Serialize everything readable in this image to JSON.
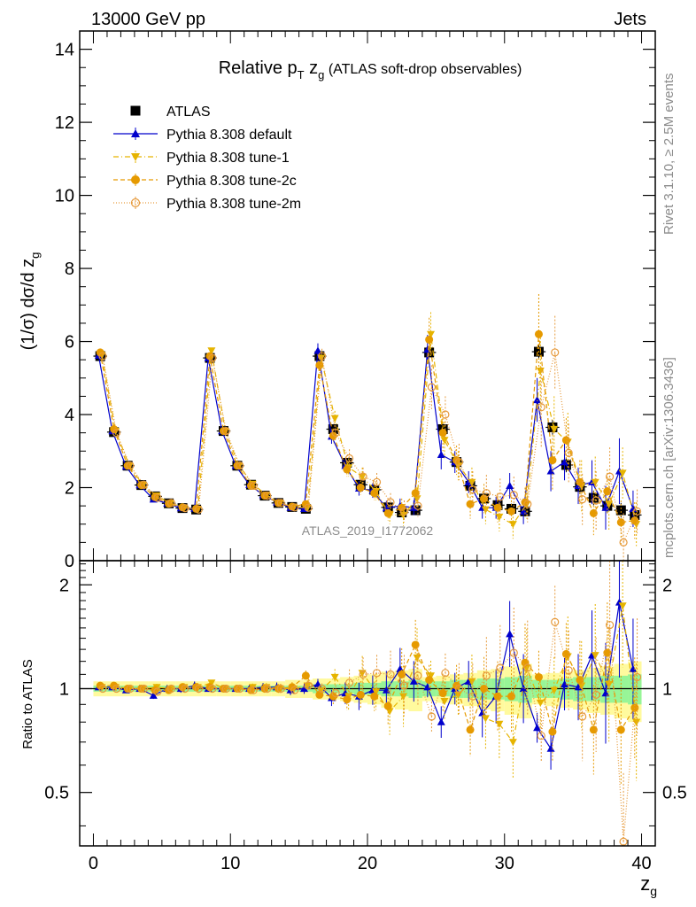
{
  "header": {
    "left_label": "13000 GeV pp",
    "right_label": "Jets"
  },
  "side_labels": {
    "rivet": "Rivet 3.1.10, ≥ 2.5M events",
    "mcplots": "mcplots.cern.ch [arXiv:1306.3436]"
  },
  "chart_data": [
    {
      "type": "scatter",
      "title_main": "Relative p",
      "title_sub1": "T",
      "title_mid": " z",
      "title_sub2": "g",
      "title_tail": " (ATLAS soft-drop observables)",
      "ylabel": "(1/σ) dσ/d z",
      "ylabel_sub": "g",
      "watermark": "ATLAS_2019_I1772062",
      "xlim": [
        -1,
        41
      ],
      "ylim": [
        0,
        14.5
      ],
      "yticks": [
        0,
        2,
        4,
        6,
        8,
        10,
        12,
        14
      ],
      "x": [
        0.5,
        1.5,
        2.5,
        3.5,
        4.5,
        5.5,
        6.5,
        7.5,
        8.5,
        9.5,
        10.5,
        11.5,
        12.5,
        13.5,
        14.5,
        15.5,
        16.5,
        17.5,
        18.5,
        19.5,
        20.5,
        21.5,
        22.5,
        23.5,
        24.5,
        25.5,
        26.5,
        27.5,
        28.5,
        29.5,
        30.5,
        31.5,
        32.5,
        33.5,
        34.5,
        35.5,
        36.5,
        37.5,
        38.5,
        39.5
      ],
      "series": [
        {
          "name": "ATLAS",
          "color": "#000000",
          "marker": "square",
          "line": "none",
          "values": [
            5.6,
            3.52,
            2.6,
            2.07,
            1.76,
            1.57,
            1.44,
            1.4,
            5.55,
            3.55,
            2.6,
            2.08,
            1.78,
            1.58,
            1.47,
            1.42,
            5.6,
            3.6,
            2.68,
            2.08,
            1.94,
            1.46,
            1.32,
            1.38,
            5.7,
            3.6,
            2.7,
            2.05,
            1.7,
            1.52,
            1.42,
            1.35,
            5.72,
            3.65,
            2.62,
            2.02,
            1.72,
            1.5,
            1.38,
            1.25
          ],
          "errors": [
            0.05,
            0.05,
            0.05,
            0.05,
            0.04,
            0.04,
            0.04,
            0.04,
            0.06,
            0.06,
            0.05,
            0.05,
            0.04,
            0.04,
            0.04,
            0.04,
            0.12,
            0.12,
            0.1,
            0.1,
            0.1,
            0.1,
            0.1,
            0.1,
            0.15,
            0.15,
            0.14,
            0.14,
            0.14,
            0.14,
            0.14,
            0.14,
            0.2,
            0.2,
            0.2,
            0.2,
            0.2,
            0.2,
            0.2,
            0.2
          ]
        },
        {
          "name": "Pythia 8.308 default",
          "color": "#0000cc",
          "marker": "triangle-up",
          "line": "solid",
          "values": [
            5.62,
            3.55,
            2.58,
            2.07,
            1.68,
            1.57,
            1.44,
            1.43,
            5.55,
            3.55,
            2.6,
            2.08,
            1.8,
            1.6,
            1.45,
            1.42,
            5.75,
            3.4,
            2.6,
            1.98,
            1.92,
            1.44,
            1.5,
            1.45,
            5.78,
            2.9,
            2.7,
            2.15,
            1.45,
            1.45,
            2.05,
            1.35,
            4.4,
            2.45,
            2.7,
            2.05,
            2.15,
            1.45,
            2.45,
            1.42
          ],
          "errors": [
            0.06,
            0.05,
            0.05,
            0.05,
            0.04,
            0.04,
            0.04,
            0.04,
            0.06,
            0.06,
            0.05,
            0.05,
            0.05,
            0.05,
            0.05,
            0.05,
            0.2,
            0.2,
            0.2,
            0.2,
            0.2,
            0.2,
            0.2,
            0.2,
            0.4,
            0.4,
            0.3,
            0.3,
            0.3,
            0.3,
            0.35,
            0.35,
            0.6,
            0.55,
            0.5,
            0.5,
            0.6,
            0.6,
            0.9,
            0.5
          ]
        },
        {
          "name": "Pythia 8.308 tune-1",
          "color": "#e6b400",
          "marker": "triangle-down",
          "line": "dashdot",
          "values": [
            5.63,
            3.55,
            2.6,
            2.07,
            1.78,
            1.57,
            1.45,
            1.41,
            5.75,
            3.55,
            2.6,
            2.1,
            1.8,
            1.58,
            1.47,
            1.45,
            5.55,
            3.9,
            2.55,
            2.3,
            1.9,
            1.25,
            1.25,
            1.7,
            6.2,
            3.3,
            2.6,
            2.15,
            1.4,
            1.2,
            1.0,
            1.55,
            5.2,
            3.6,
            3.25,
            2.05,
            2.15,
            1.55,
            2.4,
            1.0
          ],
          "errors": [
            0.06,
            0.05,
            0.05,
            0.05,
            0.04,
            0.04,
            0.04,
            0.04,
            0.08,
            0.06,
            0.05,
            0.05,
            0.05,
            0.05,
            0.05,
            0.05,
            0.2,
            0.2,
            0.25,
            0.25,
            0.25,
            0.25,
            0.3,
            0.3,
            0.6,
            0.5,
            0.4,
            0.4,
            0.4,
            0.4,
            0.4,
            0.4,
            1.1,
            0.9,
            0.8,
            0.7,
            0.7,
            0.7,
            0.7,
            0.6
          ]
        },
        {
          "name": "Pythia 8.308 tune-2c",
          "color": "#e69a00",
          "marker": "circle",
          "line": "dashed",
          "values": [
            5.7,
            3.6,
            2.6,
            2.07,
            1.74,
            1.56,
            1.46,
            1.42,
            5.6,
            3.55,
            2.6,
            2.05,
            1.78,
            1.58,
            1.48,
            1.55,
            5.35,
            3.42,
            2.5,
            2.0,
            1.85,
            1.3,
            1.45,
            1.85,
            6.05,
            3.5,
            2.75,
            1.55,
            1.7,
            1.45,
            1.35,
            1.6,
            6.2,
            2.75,
            3.3,
            2.15,
            1.3,
            1.9,
            1.05,
            1.1
          ],
          "errors": [
            0.06,
            0.05,
            0.05,
            0.05,
            0.04,
            0.04,
            0.04,
            0.04,
            0.06,
            0.06,
            0.05,
            0.05,
            0.05,
            0.05,
            0.05,
            0.05,
            0.2,
            0.2,
            0.2,
            0.2,
            0.2,
            0.2,
            0.25,
            0.25,
            0.6,
            0.5,
            0.4,
            0.4,
            0.4,
            0.4,
            0.4,
            0.4,
            1.1,
            0.8,
            0.6,
            0.6,
            0.6,
            0.6,
            0.6,
            0.5
          ]
        },
        {
          "name": "Pythia 8.308 tune-2m",
          "color": "#e69a3c",
          "marker": "open-circle",
          "line": "dotted",
          "values": [
            5.6,
            3.5,
            2.6,
            2.08,
            1.72,
            1.58,
            1.44,
            1.4,
            5.55,
            3.55,
            2.6,
            2.05,
            1.78,
            1.58,
            1.46,
            1.45,
            5.6,
            3.5,
            2.8,
            2.3,
            2.15,
            1.6,
            1.35,
            1.5,
            4.75,
            4.0,
            2.7,
            1.95,
            1.85,
            1.75,
            1.8,
            1.55,
            4.2,
            5.7,
            2.95,
            1.68,
            1.65,
            2.3,
            0.5,
            1.35
          ],
          "errors": [
            0.06,
            0.05,
            0.05,
            0.05,
            0.04,
            0.04,
            0.04,
            0.04,
            0.06,
            0.06,
            0.05,
            0.05,
            0.05,
            0.05,
            0.05,
            0.05,
            0.2,
            0.2,
            0.25,
            0.25,
            0.25,
            0.25,
            0.3,
            0.3,
            0.6,
            0.5,
            0.5,
            0.5,
            0.5,
            0.5,
            0.5,
            0.5,
            1.1,
            1.0,
            0.8,
            0.7,
            0.8,
            0.8,
            0.8,
            0.6
          ]
        }
      ],
      "legend_placement": "top-left"
    },
    {
      "type": "scatter",
      "ylabel": "Ratio to ATLAS",
      "xlabel": "z",
      "xlabel_sub": "g",
      "ylog": true,
      "ylim": [
        0.35,
        2.35
      ],
      "yticks": [
        0.5,
        1,
        2
      ],
      "ytick_labels": [
        "0.5",
        "1",
        "2"
      ],
      "xticks": [
        0,
        10,
        20,
        30,
        40
      ],
      "xtick_labels": [
        "0",
        "10",
        "20",
        "30",
        "40"
      ],
      "band_stat": [
        0.02,
        0.02,
        0.02,
        0.02,
        0.02,
        0.02,
        0.02,
        0.02,
        0.02,
        0.02,
        0.02,
        0.02,
        0.02,
        0.02,
        0.02,
        0.02,
        0.03,
        0.03,
        0.03,
        0.04,
        0.04,
        0.05,
        0.05,
        0.06,
        0.05,
        0.05,
        0.06,
        0.06,
        0.07,
        0.07,
        0.08,
        0.09,
        0.06,
        0.06,
        0.07,
        0.08,
        0.08,
        0.09,
        0.09,
        0.1
      ],
      "band_total": [
        0.05,
        0.05,
        0.05,
        0.05,
        0.05,
        0.05,
        0.05,
        0.05,
        0.05,
        0.05,
        0.05,
        0.05,
        0.05,
        0.05,
        0.06,
        0.06,
        0.07,
        0.07,
        0.08,
        0.09,
        0.1,
        0.12,
        0.13,
        0.14,
        0.08,
        0.09,
        0.1,
        0.11,
        0.13,
        0.14,
        0.16,
        0.18,
        0.1,
        0.11,
        0.12,
        0.13,
        0.15,
        0.16,
        0.18,
        0.2
      ],
      "series": [
        {
          "name": "Pythia 8.308 default",
          "values": [
            1.01,
            1.01,
            0.99,
            1.0,
            0.955,
            1.0,
            1.0,
            1.02,
            1.0,
            1.0,
            1.0,
            1.0,
            1.01,
            1.01,
            0.99,
            1.0,
            1.03,
            0.94,
            0.97,
            0.95,
            0.99,
            0.99,
            1.14,
            1.05,
            1.01,
            0.8,
            1.0,
            1.05,
            0.85,
            0.95,
            1.44,
            1.0,
            0.77,
            0.67,
            1.03,
            1.01,
            1.25,
            0.97,
            1.78,
            1.14
          ]
        },
        {
          "name": "Pythia 8.308 tune-1",
          "values": [
            1.01,
            1.01,
            1.0,
            1.0,
            1.01,
            1.0,
            1.01,
            1.01,
            1.04,
            1.0,
            1.0,
            1.01,
            1.01,
            1.0,
            1.0,
            1.02,
            0.99,
            1.08,
            0.95,
            1.11,
            0.98,
            0.86,
            0.95,
            1.23,
            1.09,
            0.92,
            0.96,
            1.05,
            0.82,
            0.79,
            0.7,
            1.15,
            0.91,
            0.99,
            1.24,
            1.02,
            1.25,
            1.03,
            1.74,
            0.8
          ]
        },
        {
          "name": "Pythia 8.308 tune-2c",
          "values": [
            1.02,
            1.02,
            1.0,
            1.0,
            0.99,
            0.99,
            1.01,
            1.01,
            1.01,
            1.0,
            1.0,
            0.99,
            1.0,
            1.0,
            1.01,
            1.09,
            0.96,
            0.95,
            0.93,
            0.96,
            0.95,
            0.89,
            1.1,
            1.34,
            1.06,
            0.97,
            1.02,
            0.76,
            1.0,
            0.95,
            0.95,
            1.19,
            1.08,
            0.75,
            1.26,
            1.06,
            0.76,
            1.27,
            0.76,
            0.88
          ]
        },
        {
          "name": "Pythia 8.308 tune-2m",
          "values": [
            1.0,
            1.0,
            1.0,
            1.0,
            0.98,
            1.0,
            1.0,
            1.0,
            1.0,
            1.0,
            1.0,
            0.99,
            1.0,
            1.0,
            0.99,
            1.02,
            1.0,
            0.97,
            1.04,
            1.1,
            1.11,
            1.1,
            1.02,
            1.09,
            0.83,
            1.11,
            1.0,
            0.95,
            1.09,
            1.15,
            1.27,
            1.15,
            0.73,
            1.56,
            1.13,
            0.83,
            0.96,
            1.53,
            0.36,
            1.08
          ]
        }
      ]
    }
  ]
}
